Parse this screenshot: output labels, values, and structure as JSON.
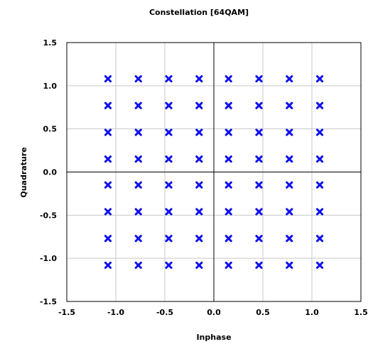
{
  "chart_data": {
    "type": "scatter",
    "title": "Constellation [64QAM]",
    "xlabel": "Inphase",
    "ylabel": "Quadrature",
    "xlim": [
      -1.5,
      1.5
    ],
    "ylim": [
      -1.5,
      1.5
    ],
    "xticks": [
      -1.5,
      -1.0,
      -0.5,
      0.0,
      0.5,
      1.0,
      1.5
    ],
    "xtick_labels": [
      "-1.5",
      "-1.0",
      "-0.5",
      "0.0",
      "0.5",
      "1.0",
      "1.5"
    ],
    "yticks": [
      1.5,
      1.0,
      0.5,
      0.0,
      -0.5,
      -1.0,
      -1.5
    ],
    "ytick_labels": [
      "1.5",
      "1.0",
      "0.5",
      "0.0",
      "-0.5",
      "-1.0",
      "-1.5"
    ],
    "grid": true,
    "marker": "x",
    "marker_color": "#1010ee",
    "series": [
      {
        "points": [
          [
            -1.08,
            1.08
          ],
          [
            -0.77,
            1.08
          ],
          [
            -0.46,
            1.08
          ],
          [
            -0.15,
            1.08
          ],
          [
            0.15,
            1.08
          ],
          [
            0.46,
            1.08
          ],
          [
            0.77,
            1.08
          ],
          [
            1.08,
            1.08
          ],
          [
            -1.08,
            0.77
          ],
          [
            -0.77,
            0.77
          ],
          [
            -0.46,
            0.77
          ],
          [
            -0.15,
            0.77
          ],
          [
            0.15,
            0.77
          ],
          [
            0.46,
            0.77
          ],
          [
            0.77,
            0.77
          ],
          [
            1.08,
            0.77
          ],
          [
            -1.08,
            0.46
          ],
          [
            -0.77,
            0.46
          ],
          [
            -0.46,
            0.46
          ],
          [
            -0.15,
            0.46
          ],
          [
            0.15,
            0.46
          ],
          [
            0.46,
            0.46
          ],
          [
            0.77,
            0.46
          ],
          [
            1.08,
            0.46
          ],
          [
            -1.08,
            0.15
          ],
          [
            -0.77,
            0.15
          ],
          [
            -0.46,
            0.15
          ],
          [
            -0.15,
            0.15
          ],
          [
            0.15,
            0.15
          ],
          [
            0.46,
            0.15
          ],
          [
            0.77,
            0.15
          ],
          [
            1.08,
            0.15
          ],
          [
            -1.08,
            -0.15
          ],
          [
            -0.77,
            -0.15
          ],
          [
            -0.46,
            -0.15
          ],
          [
            -0.15,
            -0.15
          ],
          [
            0.15,
            -0.15
          ],
          [
            0.46,
            -0.15
          ],
          [
            0.77,
            -0.15
          ],
          [
            1.08,
            -0.15
          ],
          [
            -1.08,
            -0.46
          ],
          [
            -0.77,
            -0.46
          ],
          [
            -0.46,
            -0.46
          ],
          [
            -0.15,
            -0.46
          ],
          [
            0.15,
            -0.46
          ],
          [
            0.46,
            -0.46
          ],
          [
            0.77,
            -0.46
          ],
          [
            1.08,
            -0.46
          ],
          [
            -1.08,
            -0.77
          ],
          [
            -0.77,
            -0.77
          ],
          [
            -0.46,
            -0.77
          ],
          [
            -0.15,
            -0.77
          ],
          [
            0.15,
            -0.77
          ],
          [
            0.46,
            -0.77
          ],
          [
            0.77,
            -0.77
          ],
          [
            1.08,
            -0.77
          ],
          [
            -1.08,
            -1.08
          ],
          [
            -0.77,
            -1.08
          ],
          [
            -0.46,
            -1.08
          ],
          [
            -0.15,
            -1.08
          ],
          [
            0.15,
            -1.08
          ],
          [
            0.46,
            -1.08
          ],
          [
            0.77,
            -1.08
          ],
          [
            1.08,
            -1.08
          ]
        ]
      }
    ]
  }
}
